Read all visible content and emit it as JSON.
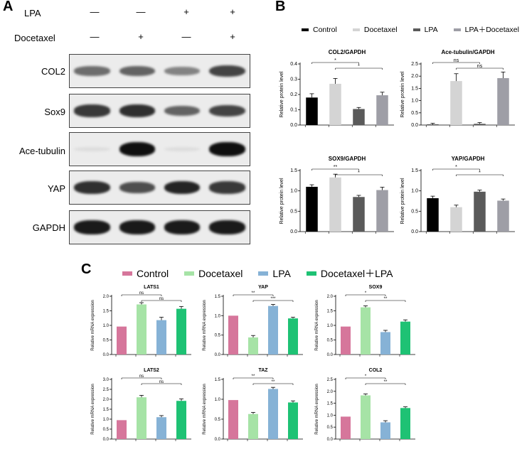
{
  "panel_a": {
    "letter": "A",
    "conditions": [
      {
        "label": "LPA",
        "symbols": [
          "—",
          "—",
          "+",
          "+"
        ]
      },
      {
        "label": "Docetaxel",
        "symbols": [
          "—",
          "+",
          "—",
          "+"
        ]
      }
    ],
    "blots": [
      {
        "label": "COL2",
        "intensity": [
          0.55,
          0.6,
          0.45,
          0.75
        ]
      },
      {
        "label": "Sox9",
        "intensity": [
          0.8,
          0.85,
          0.6,
          0.75
        ]
      },
      {
        "label": "Ace-tubulin",
        "intensity": [
          0.02,
          1.0,
          0.02,
          1.0
        ]
      },
      {
        "label": "YAP",
        "intensity": [
          0.85,
          0.7,
          0.9,
          0.8
        ]
      },
      {
        "label": "GAPDH",
        "intensity": [
          0.95,
          0.95,
          0.95,
          0.95
        ]
      }
    ]
  },
  "panel_b": {
    "letter": "B",
    "legend": [
      {
        "label": "Control",
        "color": "#000000"
      },
      {
        "label": "Docetaxel",
        "color": "#d4d4d4"
      },
      {
        "label": "LPA",
        "color": "#5a5a5a"
      },
      {
        "label": "LPA＋Docetaxel",
        "color": "#9e9ea6"
      }
    ],
    "colors": [
      "#000000",
      "#d4d4d4",
      "#5a5a5a",
      "#9e9ea6"
    ]
  },
  "panel_c": {
    "letter": "C",
    "legend": [
      {
        "label": "Control",
        "color": "#d6769b"
      },
      {
        "label": "Docetaxel",
        "color": "#a6e3a6"
      },
      {
        "label": "LPA",
        "color": "#86b2d6"
      },
      {
        "label": "Docetaxel＋LPA",
        "color": "#1ec274"
      }
    ],
    "colors": [
      "#d6769b",
      "#a6e3a6",
      "#86b2d6",
      "#1ec274"
    ]
  },
  "chart_data": [
    {
      "id": "b-col2",
      "type": "bar",
      "title": "COL2/GAPDH",
      "ylabel": "Relative protein level",
      "categories": [
        "Control",
        "Docetaxel",
        "LPA",
        "LPA＋Docetaxel"
      ],
      "values": [
        0.18,
        0.27,
        0.105,
        0.195
      ],
      "errors": [
        0.025,
        0.035,
        0.01,
        0.02
      ],
      "ylim": [
        0,
        0.4
      ],
      "yticks": [
        "0.0",
        "0.1",
        "0.2",
        "0.3",
        "0.4"
      ],
      "brackets": [
        {
          "from": 0,
          "to": 2,
          "label": "*"
        },
        {
          "from": 1,
          "to": 3,
          "label": "*"
        }
      ]
    },
    {
      "id": "b-ace",
      "type": "bar",
      "title": "Ace-tubulin/GAPDH",
      "ylabel": "Relative protein level",
      "categories": [
        "Control",
        "Docetaxel",
        "LPA",
        "LPA＋Docetaxel"
      ],
      "values": [
        0.02,
        1.8,
        0.05,
        1.92
      ],
      "errors": [
        0.05,
        0.3,
        0.05,
        0.25
      ],
      "ylim": [
        0,
        2.5
      ],
      "yticks": [
        "0.0",
        "0.5",
        "1.0",
        "1.5",
        "2.0",
        "2.5"
      ],
      "brackets": [
        {
          "from": 0,
          "to": 2,
          "label": "ns"
        },
        {
          "from": 1,
          "to": 3,
          "label": "ns"
        }
      ]
    },
    {
      "id": "b-sox9",
      "type": "bar",
      "title": "SOX9/GAPDH",
      "ylabel": "Relative protein level",
      "categories": [
        "Control",
        "Docetaxel",
        "LPA",
        "LPA＋Docetaxel"
      ],
      "values": [
        1.1,
        1.33,
        0.85,
        1.02
      ],
      "errors": [
        0.05,
        0.08,
        0.04,
        0.07
      ],
      "ylim": [
        0,
        1.5
      ],
      "yticks": [
        "0.0",
        "0.5",
        "1.0",
        "1.5"
      ],
      "brackets": [
        {
          "from": 0,
          "to": 2,
          "label": "**"
        },
        {
          "from": 1,
          "to": 3,
          "label": "*"
        }
      ]
    },
    {
      "id": "b-yap",
      "type": "bar",
      "title": "YAP/GAPDH",
      "ylabel": "Relative protein level",
      "categories": [
        "Control",
        "Docetaxel",
        "LPA",
        "LPA＋Docetaxel"
      ],
      "values": [
        0.82,
        0.6,
        0.98,
        0.76
      ],
      "errors": [
        0.05,
        0.05,
        0.04,
        0.04
      ],
      "ylim": [
        0,
        1.5
      ],
      "yticks": [
        "0.0",
        "0.5",
        "1.0",
        "1.5"
      ],
      "brackets": [
        {
          "from": 0,
          "to": 2,
          "label": "*"
        },
        {
          "from": 1,
          "to": 3,
          "label": "*"
        }
      ]
    },
    {
      "id": "c-lats1",
      "type": "bar",
      "title": "LATS1",
      "ylabel": "Relative mRNA expression",
      "categories": [
        "Control",
        "Docetaxel",
        "LPA",
        "Docetaxel＋LPA"
      ],
      "values": [
        0.96,
        1.72,
        1.18,
        1.57
      ],
      "errors": [
        0.0,
        0.06,
        0.1,
        0.08
      ],
      "ylim": [
        0,
        2.0
      ],
      "yticks": [
        "0.0",
        "0.5",
        "1.0",
        "1.5",
        "2.0"
      ],
      "brackets": [
        {
          "from": 0,
          "to": 2,
          "label": "ns"
        },
        {
          "from": 1,
          "to": 3,
          "label": "ns"
        }
      ]
    },
    {
      "id": "c-yap",
      "type": "bar",
      "title": "YAP",
      "ylabel": "Relative mRNA expression",
      "categories": [
        "Control",
        "Docetaxel",
        "LPA",
        "Docetaxel＋LPA"
      ],
      "values": [
        1.0,
        0.44,
        1.25,
        0.93
      ],
      "errors": [
        0.0,
        0.05,
        0.04,
        0.03
      ],
      "ylim": [
        0,
        1.5
      ],
      "yticks": [
        "0.0",
        "0.5",
        "1.0",
        "1.5"
      ],
      "brackets": [
        {
          "from": 0,
          "to": 2,
          "label": "**"
        },
        {
          "from": 1,
          "to": 3,
          "label": "***"
        }
      ]
    },
    {
      "id": "c-sox9",
      "type": "bar",
      "title": "SOX9",
      "ylabel": "Relative mRNA expression",
      "categories": [
        "Control",
        "Docetaxel",
        "LPA",
        "Docetaxel＋LPA"
      ],
      "values": [
        0.96,
        1.62,
        0.77,
        1.13
      ],
      "errors": [
        0.0,
        0.05,
        0.06,
        0.06
      ],
      "ylim": [
        0,
        2.0
      ],
      "yticks": [
        "0.0",
        "0.5",
        "1.0",
        "1.5",
        "2.0"
      ],
      "brackets": [
        {
          "from": 0,
          "to": 2,
          "label": "*"
        },
        {
          "from": 1,
          "to": 3,
          "label": "**"
        }
      ]
    },
    {
      "id": "c-lats2",
      "type": "bar",
      "title": "LATS2",
      "ylabel": "Relative mRNA expression",
      "categories": [
        "Control",
        "Docetaxel",
        "LPA",
        "Docetaxel＋LPA"
      ],
      "values": [
        0.95,
        2.1,
        1.1,
        1.92
      ],
      "errors": [
        0.0,
        0.1,
        0.08,
        0.1
      ],
      "ylim": [
        0,
        3.0
      ],
      "yticks": [
        "0.0",
        "0.5",
        "1.0",
        "1.5",
        "2.0",
        "2.5",
        "3.0"
      ],
      "brackets": [
        {
          "from": 0,
          "to": 2,
          "label": "ns"
        },
        {
          "from": 1,
          "to": 3,
          "label": "ns"
        }
      ]
    },
    {
      "id": "c-taz",
      "type": "bar",
      "title": "TAZ",
      "ylabel": "Relative mRNA expression",
      "categories": [
        "Control",
        "Docetaxel",
        "LPA",
        "Docetaxel＋LPA"
      ],
      "values": [
        0.98,
        0.63,
        1.26,
        0.92
      ],
      "errors": [
        0.0,
        0.04,
        0.04,
        0.04
      ],
      "ylim": [
        0,
        1.5
      ],
      "yticks": [
        "0.0",
        "0.5",
        "1.0",
        "1.5"
      ],
      "brackets": [
        {
          "from": 0,
          "to": 2,
          "label": "**"
        },
        {
          "from": 1,
          "to": 3,
          "label": "**"
        }
      ]
    },
    {
      "id": "c-col2",
      "type": "bar",
      "title": "COL2",
      "ylabel": "Relative mRNA expression",
      "categories": [
        "Control",
        "Docetaxel",
        "LPA",
        "Docetaxel＋LPA"
      ],
      "values": [
        0.94,
        1.83,
        0.7,
        1.3
      ],
      "errors": [
        0.0,
        0.06,
        0.07,
        0.05
      ],
      "ylim": [
        0,
        2.5
      ],
      "yticks": [
        "0.0",
        "0.5",
        "1.0",
        "1.5",
        "2.0",
        "2.5"
      ],
      "brackets": [
        {
          "from": 0,
          "to": 2,
          "label": "*"
        },
        {
          "from": 1,
          "to": 3,
          "label": "**"
        }
      ]
    }
  ]
}
